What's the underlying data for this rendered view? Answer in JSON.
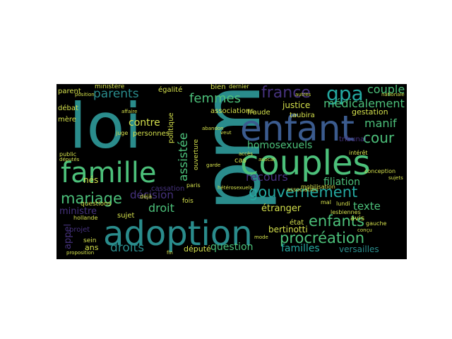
{
  "palette": {
    "background": "#000000",
    "teal": "#2a8c8c",
    "green": "#4cc07a",
    "purple": "#46327e",
    "blue": "#3b5b8e",
    "yellow": "#d4e04c",
    "cyan": "#24a8a0"
  },
  "words": {
    "pma": "pma",
    "loi": "loi",
    "adoption": "adoption",
    "enfant": "enfant",
    "couples": "couples",
    "famille": "famille",
    "gouvernement": "gouvernement",
    "enfants": "enfants",
    "procreation": "procréation",
    "mariage": "mariage",
    "droits": "droits",
    "france": "france",
    "gpa": "gpa",
    "femmes": "femmes",
    "parents": "parents",
    "homosexuels": "homosexuels",
    "cour": "cour",
    "couple": "couple",
    "medicalement": "médicalement",
    "manif": "manif",
    "filiation": "filiation",
    "recours": "recours",
    "decision": "décision",
    "droit": "droit",
    "assistee": "assistée",
    "contre": "contre",
    "etranger": "étranger",
    "texte": "texte",
    "ministre": "ministre",
    "question": "question",
    "familles": "familles",
    "versailles": "versailles",
    "depute": "député",
    "ans": "ans",
    "appel": "appel",
    "nes": "nés",
    "egalite": "égalité",
    "personnes": "personnes",
    "associations": "associations",
    "politique": "politique",
    "bien": "bien",
    "justice": "justice",
    "taubira": "taubira",
    "gestation": "gestation",
    "cassation": "cassation",
    "sujet": "sujet",
    "projet": "projet",
    "sein": "sein",
    "bertinotti": "bertinotti",
    "etat": "état",
    "parent": "parent",
    "debat": "débat",
    "mere": "mère",
    "ministere": "ministère",
    "dernier": "dernier",
    "fraude": "fraude",
    "deja": "déjà",
    "fois": "fois",
    "paris": "paris",
    "questions": "questions",
    "avis": "avis",
    "lundi": "lundi",
    "mal": "mal",
    "ouverture": "ouverture",
    "cas": "cas",
    "tribunal": "tribunal",
    "interet": "intérêt",
    "conception": "conception",
    "lesbiennes": "lesbiennes",
    "gauche": "gauche",
    "concu": "conçu",
    "mobilisation": "mobilisation",
    "association": "association",
    "hollande": "hollande",
    "public": "public",
    "deputes": "députés",
    "juge": "juge",
    "heterosexuels": "hétérosexuels",
    "mode": "mode",
    "affaire": "affaire",
    "proposition": "proposition",
    "fin": "fin",
    "acces": "accès",
    "avocat": "avocat",
    "position": "position",
    "autres": "autres",
    "garde": "garde",
    "abandon": "abandon",
    "veut": "veut",
    "nationale": "nationale",
    "sujets": "sujets"
  }
}
